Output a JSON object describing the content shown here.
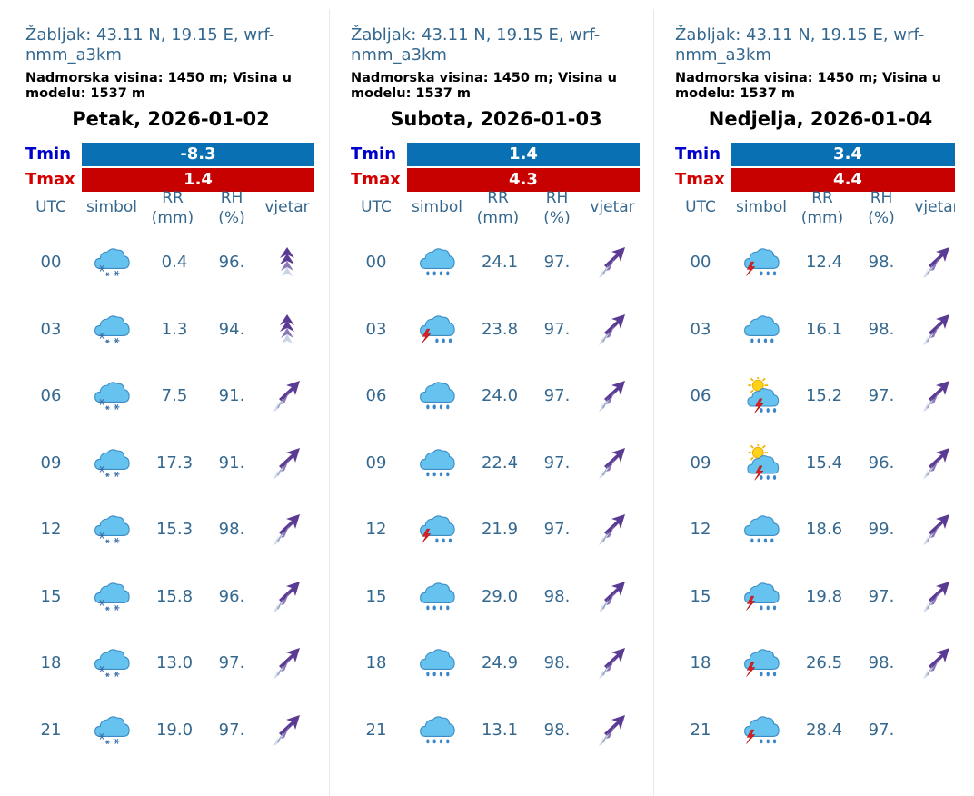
{
  "location": "Žabljak: 43.11 N, 19.15 E, wrf-nmm_a3km",
  "altitude": "Nadmorska visina: 1450 m; Visina u modelu: 1537 m",
  "labels": {
    "tmin": "Tmin",
    "tmax": "Tmax"
  },
  "headers": {
    "utc": "UTC",
    "symbol": "simbol",
    "rr": "RR",
    "rr_unit": "(mm)",
    "rh": "RH",
    "rh_unit": "(%)",
    "wind": "vjetar"
  },
  "colors": {
    "text_blue": "#35688f",
    "tmin_bar": "#0a70b4",
    "tmax_bar": "#c70000",
    "tmin_label": "#0000cc",
    "tmax_label": "#d40000"
  },
  "days": [
    {
      "title": "Petak, 2026-01-02",
      "tmin": "-8.3",
      "tmax": "1.4",
      "rows": [
        {
          "utc": "00",
          "icon": "snow-cloud-icon",
          "rr": "0.4",
          "rh": "96.",
          "wind": "wind-north-icon"
        },
        {
          "utc": "03",
          "icon": "snow-cloud-icon",
          "rr": "1.3",
          "rh": "94.",
          "wind": "wind-north-icon"
        },
        {
          "utc": "06",
          "icon": "snow-cloud-icon",
          "rr": "7.5",
          "rh": "91.",
          "wind": "wind-northeast-icon"
        },
        {
          "utc": "09",
          "icon": "snow-cloud-icon",
          "rr": "17.3",
          "rh": "91.",
          "wind": "wind-northeast-icon"
        },
        {
          "utc": "12",
          "icon": "snow-cloud-icon",
          "rr": "15.3",
          "rh": "98.",
          "wind": "wind-northeast-icon"
        },
        {
          "utc": "15",
          "icon": "snow-cloud-icon",
          "rr": "15.8",
          "rh": "96.",
          "wind": "wind-northeast-icon"
        },
        {
          "utc": "18",
          "icon": "snow-cloud-icon",
          "rr": "13.0",
          "rh": "97.",
          "wind": "wind-northeast-icon"
        },
        {
          "utc": "21",
          "icon": "snow-cloud-icon",
          "rr": "19.0",
          "rh": "97.",
          "wind": "wind-northeast-icon"
        }
      ]
    },
    {
      "title": "Subota, 2026-01-03",
      "tmin": "1.4",
      "tmax": "4.3",
      "rows": [
        {
          "utc": "00",
          "icon": "rain-cloud-icon",
          "rr": "24.1",
          "rh": "97.",
          "wind": "wind-northeast-icon"
        },
        {
          "utc": "03",
          "icon": "thunderstorm-rain-icon",
          "rr": "23.8",
          "rh": "97.",
          "wind": "wind-northeast-icon"
        },
        {
          "utc": "06",
          "icon": "rain-cloud-icon",
          "rr": "24.0",
          "rh": "97.",
          "wind": "wind-northeast-icon"
        },
        {
          "utc": "09",
          "icon": "rain-cloud-icon",
          "rr": "22.4",
          "rh": "97.",
          "wind": "wind-northeast-icon"
        },
        {
          "utc": "12",
          "icon": "thunderstorm-rain-icon",
          "rr": "21.9",
          "rh": "97.",
          "wind": "wind-northeast-icon"
        },
        {
          "utc": "15",
          "icon": "rain-cloud-icon",
          "rr": "29.0",
          "rh": "98.",
          "wind": "wind-northeast-icon"
        },
        {
          "utc": "18",
          "icon": "rain-cloud-icon",
          "rr": "24.9",
          "rh": "98.",
          "wind": "wind-northeast-icon"
        },
        {
          "utc": "21",
          "icon": "rain-cloud-icon",
          "rr": "13.1",
          "rh": "98.",
          "wind": "wind-northeast-icon"
        }
      ]
    },
    {
      "title": "Nedjelja, 2026-01-04",
      "tmin": "3.4",
      "tmax": "4.4",
      "rows": [
        {
          "utc": "00",
          "icon": "thunderstorm-rain-icon",
          "rr": "12.4",
          "rh": "98.",
          "wind": "wind-northeast-icon"
        },
        {
          "utc": "03",
          "icon": "rain-cloud-icon",
          "rr": "16.1",
          "rh": "98.",
          "wind": "wind-northeast-icon"
        },
        {
          "utc": "06",
          "icon": "sun-thunderstorm-icon",
          "rr": "15.2",
          "rh": "97.",
          "wind": "wind-northeast-icon"
        },
        {
          "utc": "09",
          "icon": "sun-thunderstorm-icon",
          "rr": "15.4",
          "rh": "96.",
          "wind": "wind-northeast-icon"
        },
        {
          "utc": "12",
          "icon": "rain-cloud-icon",
          "rr": "18.6",
          "rh": "99.",
          "wind": "wind-northeast-icon"
        },
        {
          "utc": "15",
          "icon": "thunderstorm-rain-icon",
          "rr": "19.8",
          "rh": "97.",
          "wind": "wind-northeast-icon"
        },
        {
          "utc": "18",
          "icon": "thunderstorm-rain-icon",
          "rr": "26.5",
          "rh": "98.",
          "wind": "wind-northeast-icon"
        },
        {
          "utc": "21",
          "icon": "thunderstorm-rain-icon",
          "rr": "28.4",
          "rh": "97.",
          "wind": ""
        }
      ]
    }
  ]
}
